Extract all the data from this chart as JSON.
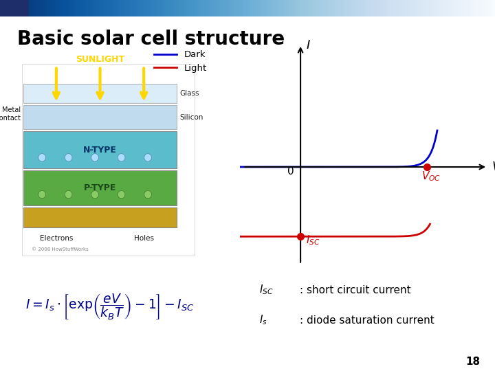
{
  "title": "Basic solar cell structure",
  "title_fontsize": 20,
  "bg_color": "#ffffff",
  "dark_color": "#0000cc",
  "light_color": "#cc0000",
  "voc_label": "$V_{OC}$",
  "isc_label": "$I_{SC}$",
  "v_label": "$V$",
  "i_label": "$I$",
  "zero_label": "0",
  "dark_legend": "Dark",
  "light_legend": "Light",
  "formula_color": "#00008B",
  "page_num": "18",
  "dot_color": "#cc0000",
  "dot_size": 7,
  "header_gradient_left": "#1a2a7a",
  "header_gradient_right": "#c8d4e8",
  "Voc": 0.88,
  "Isc": -1.25,
  "Is": 1e-09,
  "Vt": 0.026,
  "curve_n": 1.8
}
